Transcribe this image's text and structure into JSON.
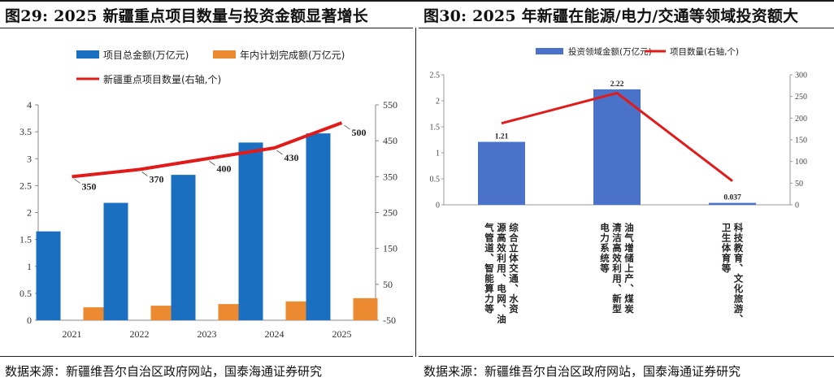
{
  "left": {
    "title": "图29:  2025 新疆重点项目数量与投资金额显著增长",
    "source": "数据来源：新疆维吾尔自治区政府网站，国泰海通证券研究"
  },
  "right": {
    "title": "图30:  2025 年新疆在能源/电力/交通等领域投资额大",
    "source": "数据来源：新疆维吾尔自治区政府网站，国泰海通证券研究"
  },
  "chart_data": [
    {
      "type": "bar",
      "categories": [
        "2021",
        "2022",
        "2023",
        "2024",
        "2025"
      ],
      "series": [
        {
          "name": "项目总金额(万亿元)",
          "values": [
            1.65,
            2.18,
            2.7,
            3.3,
            3.47
          ],
          "color": "#1a6fc0",
          "axis": "left"
        },
        {
          "name": "年内计划完成额(万亿元)",
          "values": [
            0.24,
            0.27,
            0.3,
            0.35,
            0.41
          ],
          "color": "#ec8a32",
          "axis": "left"
        },
        {
          "name": "新疆重点项目数量(右轴,个)",
          "type": "line",
          "values": [
            350,
            370,
            400,
            430,
            500
          ],
          "labels": [
            "350",
            "370",
            "400",
            "430",
            "500"
          ],
          "color": "#e11a1a",
          "axis": "right"
        }
      ],
      "ylim": [
        0,
        4
      ],
      "yticks": [
        "0",
        "0.5",
        "1",
        "1.5",
        "2",
        "2.5",
        "3",
        "3.5",
        "4"
      ],
      "y2lim": [
        -50,
        550
      ],
      "y2ticks": [
        "-50",
        "50",
        "150",
        "250",
        "350",
        "450",
        "550"
      ],
      "grid": false,
      "legend": "top"
    },
    {
      "type": "bar",
      "categories": [
        [
          "综合立体交通、水资",
          "源高效利用、电网、油",
          "气管道、智能算力等"
        ],
        [
          "油气增储上产、煤炭",
          "清洁高效利用、新型",
          "电力系统等"
        ],
        [
          "科技教育、文化旅游、",
          "卫生体育等"
        ]
      ],
      "series": [
        {
          "name": "投资领域金额(万亿元)",
          "values": [
            1.21,
            2.22,
            0.037
          ],
          "labels": [
            "1.21",
            "2.22",
            "0.037"
          ],
          "color": "#4a72c8",
          "axis": "left"
        },
        {
          "name": "项目数量(右轴,个)",
          "type": "line",
          "values": [
            188,
            258,
            55
          ],
          "color": "#e11a1a",
          "axis": "right"
        }
      ],
      "ylim": [
        0,
        2.5
      ],
      "yticks": [
        "0",
        "0.5",
        "1",
        "1.5",
        "2",
        "2.5"
      ],
      "y2lim": [
        0,
        300
      ],
      "y2ticks": [
        "0",
        "50",
        "100",
        "150",
        "200",
        "250",
        "300"
      ],
      "grid": false,
      "legend": "top"
    }
  ]
}
